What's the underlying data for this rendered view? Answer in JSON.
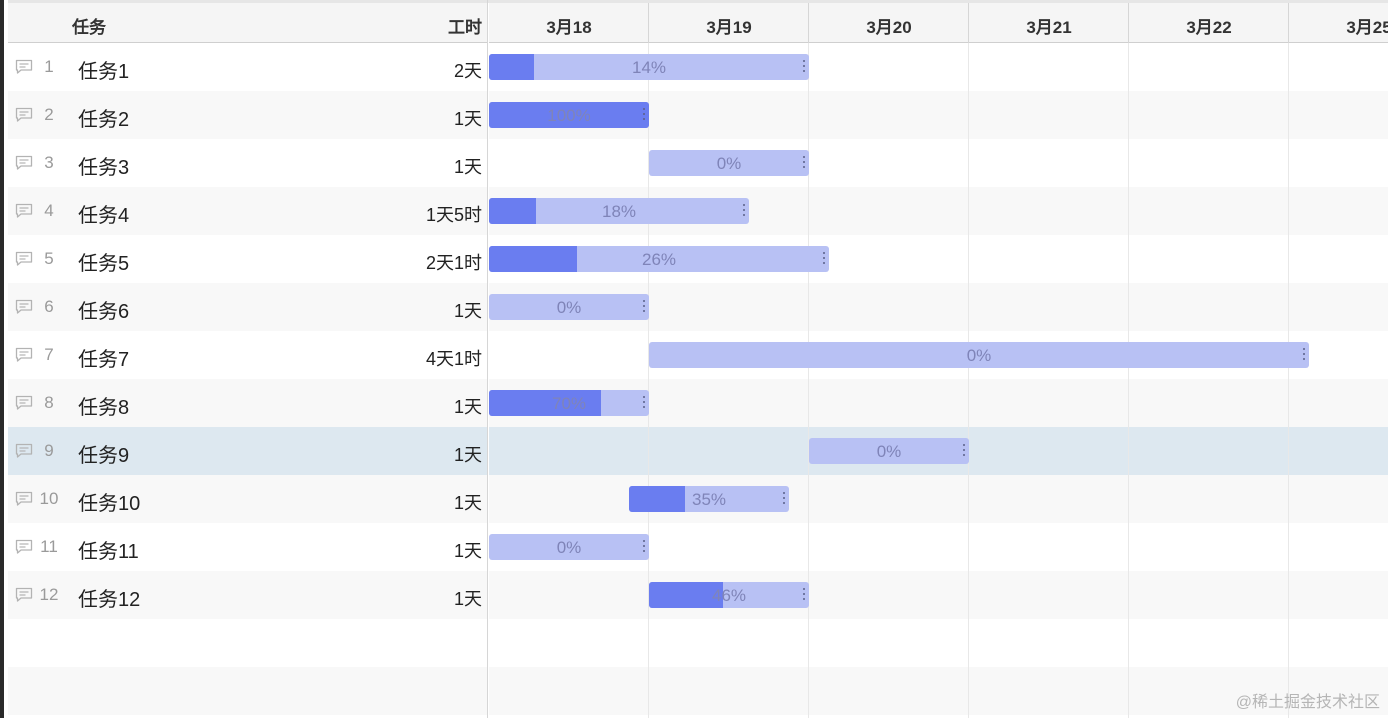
{
  "header": {
    "task_label": "任务",
    "work_label": "工时"
  },
  "days": [
    "3月18",
    "3月19",
    "3月20",
    "3月21",
    "3月22",
    "3月25"
  ],
  "tasks": [
    {
      "no": "1",
      "name": "任务1",
      "work": "2天",
      "start": 0,
      "span": 2,
      "progress": 14,
      "pct": "14%"
    },
    {
      "no": "2",
      "name": "任务2",
      "work": "1天",
      "start": 0,
      "span": 1,
      "progress": 100,
      "pct": "100%"
    },
    {
      "no": "3",
      "name": "任务3",
      "work": "1天",
      "start": 1,
      "span": 1,
      "progress": 0,
      "pct": "0%"
    },
    {
      "no": "4",
      "name": "任务4",
      "work": "1天5时",
      "start": 0,
      "span": 1.625,
      "progress": 18,
      "pct": "18%"
    },
    {
      "no": "5",
      "name": "任务5",
      "work": "2天1时",
      "start": 0,
      "span": 2.125,
      "progress": 26,
      "pct": "26%"
    },
    {
      "no": "6",
      "name": "任务6",
      "work": "1天",
      "start": 0,
      "span": 1,
      "progress": 0,
      "pct": "0%"
    },
    {
      "no": "7",
      "name": "任务7",
      "work": "4天1时",
      "start": 1,
      "span": 4.125,
      "progress": 0,
      "pct": "0%"
    },
    {
      "no": "8",
      "name": "任务8",
      "work": "1天",
      "start": 0,
      "span": 1,
      "progress": 70,
      "pct": "70%"
    },
    {
      "no": "9",
      "name": "任务9",
      "work": "1天",
      "start": 2,
      "span": 1,
      "progress": 0,
      "pct": "0%"
    },
    {
      "no": "10",
      "name": "任务10",
      "work": "1天",
      "start": 0.875,
      "span": 1,
      "progress": 35,
      "pct": "35%"
    },
    {
      "no": "11",
      "name": "任务11",
      "work": "1天",
      "start": 0,
      "span": 1,
      "progress": 0,
      "pct": "0%"
    },
    {
      "no": "12",
      "name": "任务12",
      "work": "1天",
      "start": 1,
      "span": 1,
      "progress": 46,
      "pct": "46%"
    }
  ],
  "selected_task": "9",
  "colors": {
    "bar": "#b8c1f4",
    "fill": "#6a7df0",
    "selected_row": "#dde8f0"
  },
  "row_icon": "comment-icon",
  "watermark": "@稀土掘金技术社区"
}
